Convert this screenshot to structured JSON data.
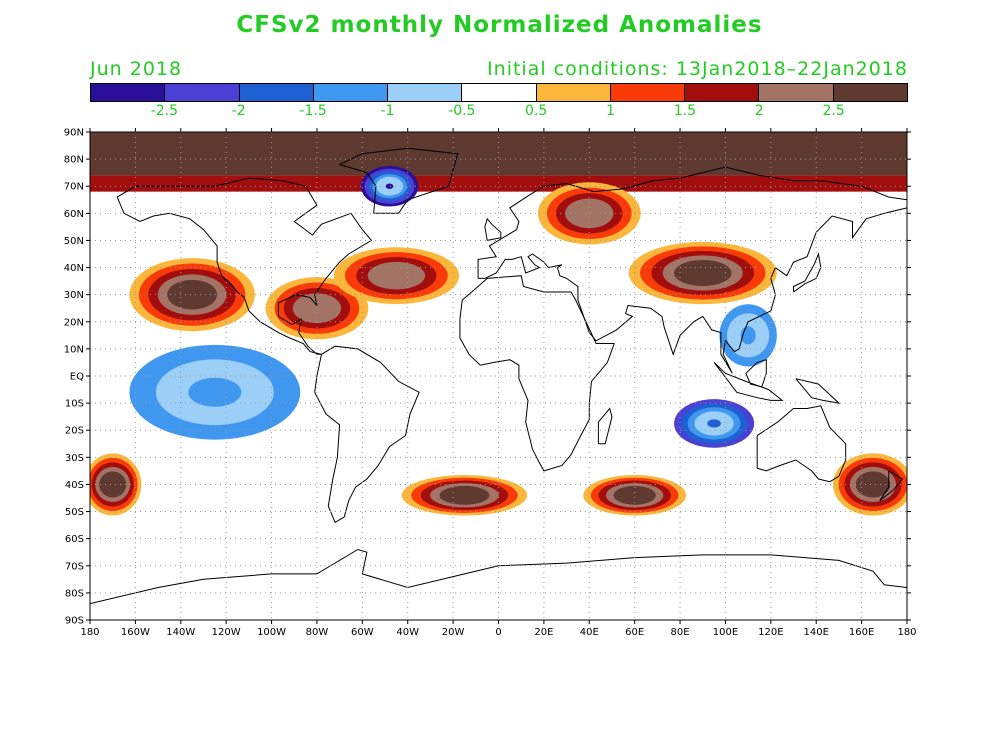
{
  "header": {
    "title": "CFSv2 monthly Normalized Anomalies",
    "month_label": "Jun 2018",
    "initial_conditions": "Initial conditions: 13Jan2018–22Jan2018"
  },
  "colors": {
    "text_accent": "#22cc22",
    "scale": [
      "#2a0f99",
      "#4b3fd4",
      "#1e5fd2",
      "#3f97f0",
      "#9ccff7",
      "#ffffff",
      "#fbb73c",
      "#f93b0a",
      "#a20e0e",
      "#a37466",
      "#5e3a30"
    ],
    "land_outline": "#000000",
    "grid": "#9a9a9a"
  },
  "legend": {
    "labels": [
      "-2.5",
      "-2",
      "-1.5",
      "-1",
      "-0.5",
      "0.5",
      "1",
      "1.5",
      "2",
      "2.5"
    ]
  },
  "axes": {
    "lat_labels": [
      "90N",
      "80N",
      "70N",
      "60N",
      "50N",
      "40N",
      "30N",
      "20N",
      "10N",
      "EQ",
      "10S",
      "20S",
      "30S",
      "40S",
      "50S",
      "60S",
      "70S",
      "80S",
      "90S"
    ],
    "lon_labels": [
      "180",
      "160W",
      "140W",
      "120W",
      "100W",
      "80W",
      "60W",
      "40W",
      "20W",
      "0",
      "20E",
      "40E",
      "60E",
      "80E",
      "100E",
      "120E",
      "140E",
      "160E",
      "180"
    ]
  },
  "chart_data": {
    "type": "heatmap",
    "title": "CFSv2 monthly Normalized Anomalies",
    "xlabel": "",
    "ylabel": "",
    "x_range": [
      -180,
      180
    ],
    "y_range": [
      -90,
      90
    ],
    "levels": [
      -2.5,
      -2,
      -1.5,
      -1,
      -0.5,
      0.5,
      1,
      1.5,
      2,
      2.5
    ],
    "grid": true,
    "anomaly_regions": [
      {
        "label": "Arctic band",
        "lon": [
          -180,
          180
        ],
        "lat": [
          75,
          90
        ],
        "value": 3.0
      },
      {
        "label": "Greenland cold",
        "lon": [
          -58,
          -38
        ],
        "lat": [
          64,
          76
        ],
        "value": -2.8
      },
      {
        "label": "NE Pacific warm",
        "lon": [
          -160,
          -110
        ],
        "lat": [
          18,
          42
        ],
        "value": 2.6
      },
      {
        "label": "Gulf / Caribbean warm",
        "lon": [
          -100,
          -60
        ],
        "lat": [
          15,
          35
        ],
        "value": 2.4
      },
      {
        "label": "N Atlantic warm",
        "lon": [
          -70,
          -20
        ],
        "lat": [
          28,
          46
        ],
        "value": 2.2
      },
      {
        "label": "Central Asia warm",
        "lon": [
          60,
          120
        ],
        "lat": [
          28,
          48
        ],
        "value": 2.7
      },
      {
        "label": "Russia warm",
        "lon": [
          20,
          60
        ],
        "lat": [
          50,
          70
        ],
        "value": 2.3
      },
      {
        "label": "South China cold",
        "lon": [
          100,
          120
        ],
        "lat": [
          5,
          25
        ],
        "value": -1.4
      },
      {
        "label": "Tropical Pacific cold",
        "lon": [
          -160,
          -90
        ],
        "lat": [
          -22,
          10
        ],
        "value": -1.2
      },
      {
        "label": "Indian Ocean cold",
        "lon": [
          80,
          110
        ],
        "lat": [
          -25,
          -10
        ],
        "value": -2.0
      },
      {
        "label": "S Atlantic warm",
        "lon": [
          -40,
          10
        ],
        "lat": [
          -50,
          -38
        ],
        "value": 2.6
      },
      {
        "label": "S Indian warm",
        "lon": [
          40,
          80
        ],
        "lat": [
          -50,
          -38
        ],
        "value": 2.6
      },
      {
        "label": "Tasman warm",
        "lon": [
          150,
          180
        ],
        "lat": [
          -50,
          -30
        ],
        "value": 2.6
      },
      {
        "label": "SE Pacific warm",
        "lon": [
          -180,
          -160
        ],
        "lat": [
          -50,
          -30
        ],
        "value": 2.5
      }
    ]
  }
}
